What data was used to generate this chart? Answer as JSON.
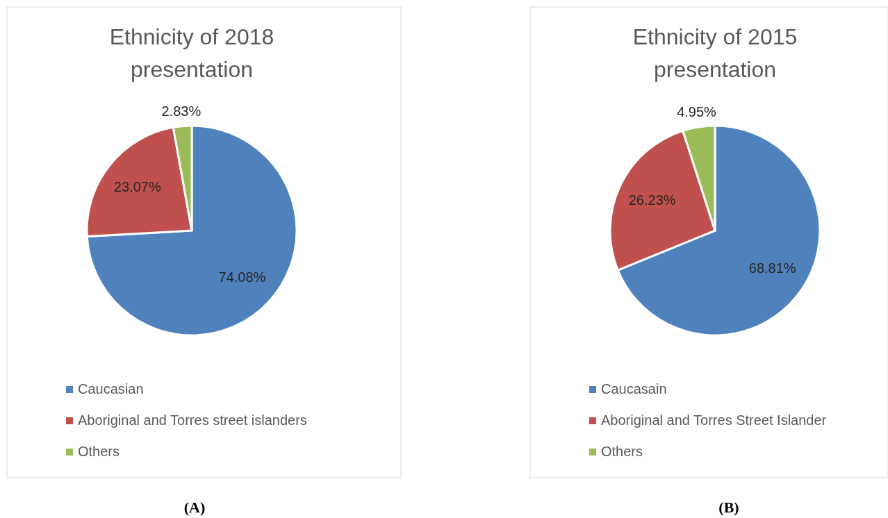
{
  "chart_data": [
    {
      "type": "pie",
      "title": "Ethnicity of 2018 presentation",
      "categories": [
        "Caucasian",
        "Aboriginal and Torres street islanders",
        "Others"
      ],
      "values": [
        74.08,
        23.07,
        2.83
      ],
      "value_labels": [
        "74.08%",
        "23.07%",
        "2.83%"
      ],
      "colors": [
        "#4f81bd",
        "#c0504d",
        "#9bbb59"
      ],
      "legend": "bottom",
      "annotations": [
        "(A)"
      ]
    },
    {
      "type": "pie",
      "title": "Ethnicity of 2015 presentation",
      "categories": [
        "Caucasain",
        "Aboriginal and Torres Street Islander",
        "Others"
      ],
      "values": [
        68.81,
        26.23,
        4.95
      ],
      "value_labels": [
        "68.81%",
        "26.23%",
        "4.95%"
      ],
      "colors": [
        "#4f81bd",
        "#c0504d",
        "#9bbb59"
      ],
      "legend": "bottom",
      "annotations": [
        "(B)"
      ]
    }
  ]
}
